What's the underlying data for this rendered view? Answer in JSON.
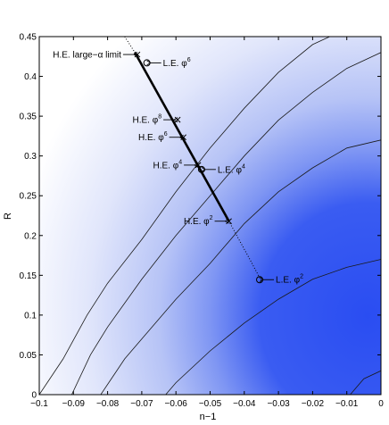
{
  "chart_data": {
    "type": "contour",
    "xlabel": "n−1",
    "ylabel": "R",
    "xlim": [
      -0.1,
      0
    ],
    "ylim": [
      0,
      0.45
    ],
    "x_ticks": [
      -0.1,
      -0.09,
      -0.08,
      -0.07,
      -0.06,
      -0.05,
      -0.04,
      -0.03,
      -0.02,
      -0.01,
      0
    ],
    "x_tick_labels": [
      "−0.1",
      "−0.09",
      "−0.08",
      "−0.07",
      "−0.06",
      "−0.05",
      "−0.04",
      "−0.03",
      "−0.02",
      "−0.01",
      "0"
    ],
    "y_ticks": [
      0,
      0.05,
      0.1,
      0.15,
      0.2,
      0.25,
      0.3,
      0.35,
      0.4,
      0.45
    ],
    "y_tick_labels": [
      "0",
      "0.05",
      "0.1",
      "0.15",
      "0.2",
      "0.25",
      "0.3",
      "0.35",
      "0.4",
      "0.45"
    ],
    "background": {
      "description": "shaded likelihood density, deepest toward lower right",
      "peak_color": "#2a4df2",
      "peak_near": [
        -0.015,
        0.1
      ]
    },
    "contours": [
      {
        "points": [
          [
            -0.1,
            0.0
          ],
          [
            -0.093,
            0.045
          ],
          [
            -0.086,
            0.1
          ],
          [
            -0.08,
            0.14
          ],
          [
            -0.07,
            0.195
          ],
          [
            -0.06,
            0.255
          ],
          [
            -0.05,
            0.31
          ],
          [
            -0.04,
            0.36
          ],
          [
            -0.03,
            0.405
          ],
          [
            -0.02,
            0.44
          ],
          [
            -0.015,
            0.45
          ]
        ]
      },
      {
        "points": [
          [
            -0.0905,
            0.0
          ],
          [
            -0.085,
            0.05
          ],
          [
            -0.08,
            0.085
          ],
          [
            -0.07,
            0.145
          ],
          [
            -0.06,
            0.2
          ],
          [
            -0.05,
            0.25
          ],
          [
            -0.04,
            0.3
          ],
          [
            -0.03,
            0.345
          ],
          [
            -0.02,
            0.38
          ],
          [
            -0.01,
            0.41
          ],
          [
            0.0,
            0.43
          ]
        ]
      },
      {
        "points": [
          [
            -0.082,
            0.0
          ],
          [
            -0.075,
            0.045
          ],
          [
            -0.07,
            0.07
          ],
          [
            -0.06,
            0.12
          ],
          [
            -0.05,
            0.165
          ],
          [
            -0.04,
            0.215
          ],
          [
            -0.03,
            0.255
          ],
          [
            -0.02,
            0.285
          ],
          [
            -0.01,
            0.31
          ],
          [
            0.0,
            0.32
          ]
        ]
      },
      {
        "points": [
          [
            -0.063,
            0.0
          ],
          [
            -0.06,
            0.015
          ],
          [
            -0.05,
            0.055
          ],
          [
            -0.04,
            0.09
          ],
          [
            -0.03,
            0.12
          ],
          [
            -0.02,
            0.145
          ],
          [
            -0.01,
            0.16
          ],
          [
            0.0,
            0.17
          ]
        ]
      },
      {
        "points": [
          [
            -0.009,
            0.0
          ],
          [
            -0.005,
            0.02
          ],
          [
            0.0,
            0.03
          ]
        ]
      }
    ],
    "large_n_trajectory": [
      [
        -0.072,
        0.43
      ],
      [
        -0.0445,
        0.218
      ]
    ],
    "dotted_extension": [
      [
        -0.075,
        0.45
      ],
      [
        -0.072,
        0.43
      ],
      [
        -0.0445,
        0.218
      ],
      [
        -0.039,
        0.175
      ],
      [
        -0.035,
        0.143
      ]
    ],
    "markers": [
      {
        "label": "H.E. large−α limit",
        "marker": "x",
        "x": -0.0713,
        "y": 0.4275,
        "arrow": true,
        "label_side": "left"
      },
      {
        "label": "L.E. φ",
        "power": "6",
        "marker": "o",
        "x": -0.0685,
        "y": 0.417,
        "arrow": true,
        "label_side": "right"
      },
      {
        "label": "H.E. φ",
        "power": "8",
        "marker": "x",
        "x": -0.0595,
        "y": 0.3455,
        "arrow": true,
        "label_side": "left"
      },
      {
        "label": "H.E. φ",
        "power": "6",
        "marker": "x",
        "x": -0.0578,
        "y": 0.3235,
        "arrow": true,
        "label_side": "left"
      },
      {
        "label": "H.E. φ",
        "power": "4",
        "marker": "x",
        "x": -0.0535,
        "y": 0.2885,
        "arrow": true,
        "label_side": "left"
      },
      {
        "label": "L.E. φ",
        "power": "4",
        "marker": "o",
        "x": -0.0525,
        "y": 0.283,
        "arrow": true,
        "label_side": "right"
      },
      {
        "label": "H.E. φ",
        "power": "2",
        "marker": "x",
        "x": -0.0445,
        "y": 0.218,
        "arrow": true,
        "label_side": "left"
      },
      {
        "label": "L.E. φ",
        "power": "2",
        "marker": "o",
        "x": -0.0355,
        "y": 0.1445,
        "arrow": true,
        "label_side": "right"
      }
    ]
  }
}
